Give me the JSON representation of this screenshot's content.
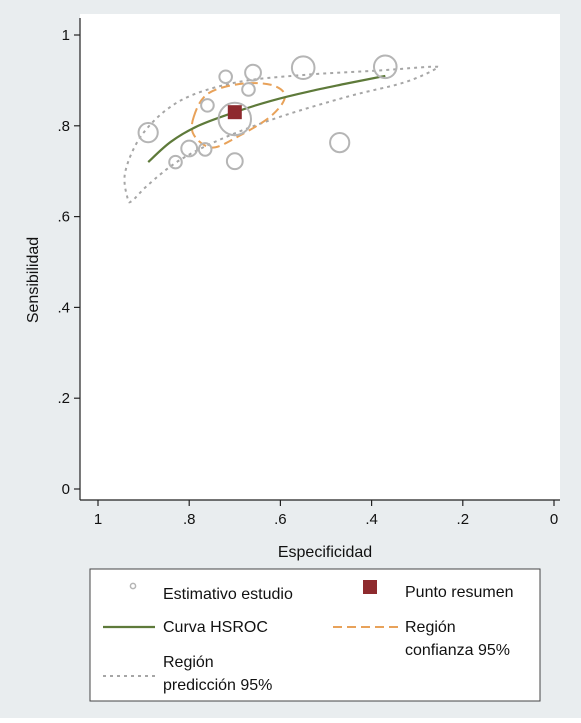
{
  "chart_data": {
    "type": "scatter",
    "title": "",
    "xlabel": "Especificidad",
    "ylabel": "Sensibilidad",
    "x_reversed": true,
    "xlim": [
      1,
      0
    ],
    "ylim": [
      0,
      1
    ],
    "xticks": [
      {
        "value": 1,
        "label": "1"
      },
      {
        "value": 0.8,
        "label": ".8"
      },
      {
        "value": 0.6,
        "label": ".6"
      },
      {
        "value": 0.4,
        "label": ".4"
      },
      {
        "value": 0.2,
        "label": ".2"
      },
      {
        "value": 0,
        "label": "0"
      }
    ],
    "yticks": [
      {
        "value": 0,
        "label": "0"
      },
      {
        "value": 0.2,
        "label": ".2"
      },
      {
        "value": 0.4,
        "label": ".4"
      },
      {
        "value": 0.6,
        "label": ".6"
      },
      {
        "value": 0.8,
        "label": ".8"
      },
      {
        "value": 1,
        "label": "1"
      }
    ],
    "grid": false,
    "legend_placement": "bottom",
    "studies": [
      {
        "specificity": 0.89,
        "sensitivity": 0.785,
        "weight": 2
      },
      {
        "specificity": 0.7,
        "sensitivity": 0.815,
        "weight": 4
      },
      {
        "specificity": 0.72,
        "sensitivity": 0.908,
        "weight": 1
      },
      {
        "specificity": 0.66,
        "sensitivity": 0.917,
        "weight": 1.5
      },
      {
        "specificity": 0.55,
        "sensitivity": 0.928,
        "weight": 2.5
      },
      {
        "specificity": 0.37,
        "sensitivity": 0.93,
        "weight": 2.5
      },
      {
        "specificity": 0.76,
        "sensitivity": 0.845,
        "weight": 1
      },
      {
        "specificity": 0.67,
        "sensitivity": 0.88,
        "weight": 1
      },
      {
        "specificity": 0.8,
        "sensitivity": 0.75,
        "weight": 1.5
      },
      {
        "specificity": 0.83,
        "sensitivity": 0.72,
        "weight": 1
      },
      {
        "specificity": 0.765,
        "sensitivity": 0.748,
        "weight": 1
      },
      {
        "specificity": 0.7,
        "sensitivity": 0.722,
        "weight": 1.5
      },
      {
        "specificity": 0.47,
        "sensitivity": 0.763,
        "weight": 2
      }
    ],
    "summary_point": {
      "specificity": 0.7,
      "sensitivity": 0.83
    },
    "hsroc_curve": [
      {
        "specificity": 0.89,
        "sensitivity": 0.72
      },
      {
        "specificity": 0.84,
        "sensitivity": 0.765
      },
      {
        "specificity": 0.78,
        "sensitivity": 0.8
      },
      {
        "specificity": 0.7,
        "sensitivity": 0.83
      },
      {
        "specificity": 0.62,
        "sensitivity": 0.855
      },
      {
        "specificity": 0.54,
        "sensitivity": 0.875
      },
      {
        "specificity": 0.46,
        "sensitivity": 0.892
      },
      {
        "specificity": 0.37,
        "sensitivity": 0.91
      }
    ],
    "confidence_region": [
      {
        "specificity": 0.79,
        "sensitivity": 0.82
      },
      {
        "specificity": 0.76,
        "sensitivity": 0.87
      },
      {
        "specificity": 0.69,
        "sensitivity": 0.892
      },
      {
        "specificity": 0.62,
        "sensitivity": 0.89
      },
      {
        "specificity": 0.59,
        "sensitivity": 0.865
      },
      {
        "specificity": 0.62,
        "sensitivity": 0.822
      },
      {
        "specificity": 0.69,
        "sensitivity": 0.778
      },
      {
        "specificity": 0.75,
        "sensitivity": 0.752
      },
      {
        "specificity": 0.79,
        "sensitivity": 0.78
      }
    ],
    "prediction_region": [
      {
        "specificity": 0.935,
        "sensitivity": 0.64
      },
      {
        "specificity": 0.94,
        "sensitivity": 0.7
      },
      {
        "specificity": 0.9,
        "sensitivity": 0.785
      },
      {
        "specificity": 0.82,
        "sensitivity": 0.855
      },
      {
        "specificity": 0.7,
        "sensitivity": 0.895
      },
      {
        "specificity": 0.55,
        "sensitivity": 0.912
      },
      {
        "specificity": 0.38,
        "sensitivity": 0.922
      },
      {
        "specificity": 0.27,
        "sensitivity": 0.93
      },
      {
        "specificity": 0.26,
        "sensitivity": 0.925
      },
      {
        "specificity": 0.33,
        "sensitivity": 0.895
      },
      {
        "specificity": 0.45,
        "sensitivity": 0.865
      },
      {
        "specificity": 0.6,
        "sensitivity": 0.82
      },
      {
        "specificity": 0.72,
        "sensitivity": 0.775
      },
      {
        "specificity": 0.82,
        "sensitivity": 0.725
      },
      {
        "specificity": 0.89,
        "sensitivity": 0.67
      },
      {
        "specificity": 0.925,
        "sensitivity": 0.635
      }
    ],
    "legend": {
      "study_estimate": "Estimativo estudio",
      "summary_point": "Punto resumen",
      "hsroc_curve": "Curva HSROC",
      "confidence_region_line1": "Región",
      "confidence_region_line2": "confianza 95%",
      "prediction_region_line1": "Región",
      "prediction_region_line2": "predicción 95%"
    },
    "colors": {
      "background": "#e9edef",
      "plot_area": "#ffffff",
      "study_circle": "#b5b5b5",
      "summary_point": "#8e2a2e",
      "hsroc_curve": "#5e7a3a",
      "confidence_region": "#e8a25a",
      "prediction_region": "#a6a6a6",
      "axis": "#222222"
    }
  }
}
